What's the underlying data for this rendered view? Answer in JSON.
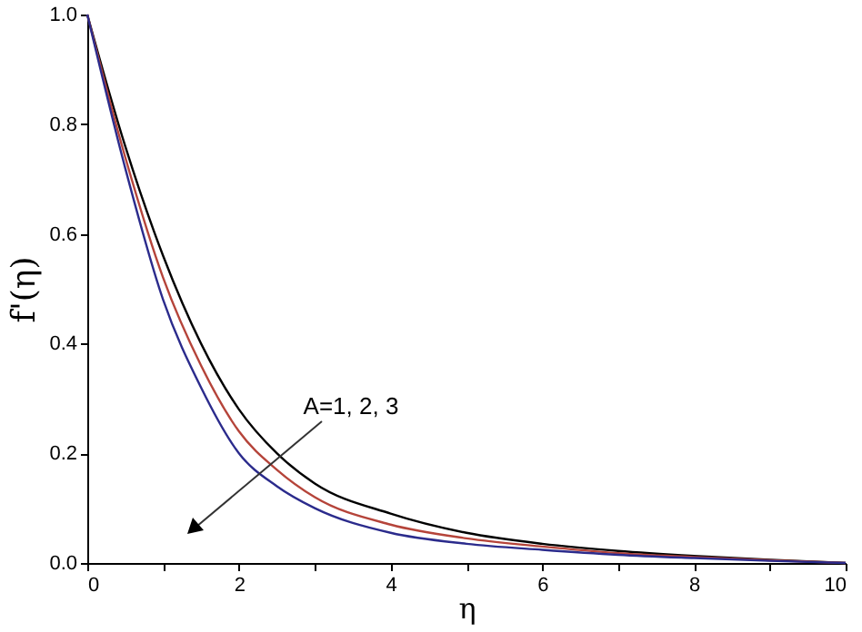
{
  "chart_data": {
    "type": "line",
    "xlabel": "η",
    "ylabel": "f'(η)",
    "x": [
      0,
      0.5,
      1,
      1.5,
      2,
      2.5,
      3,
      4,
      5,
      6,
      7,
      8,
      9,
      10
    ],
    "series": [
      {
        "color": "#000000",
        "values": [
          1,
          0.76,
          0.56,
          0.4,
          0.28,
          0.2,
          0.145,
          0.09,
          0.055,
          0.035,
          0.022,
          0.013,
          0.006,
          0
        ]
      },
      {
        "color": "#b5443a",
        "values": [
          1,
          0.74,
          0.52,
          0.36,
          0.24,
          0.17,
          0.12,
          0.07,
          0.045,
          0.03,
          0.018,
          0.011,
          0.005,
          0
        ]
      },
      {
        "color": "#2b2b8c",
        "values": [
          1,
          0.72,
          0.48,
          0.32,
          0.2,
          0.14,
          0.1,
          0.055,
          0.035,
          0.024,
          0.015,
          0.009,
          0.004,
          0
        ]
      }
    ],
    "xlim": [
      0,
      10
    ],
    "ylim": [
      0,
      1
    ],
    "xticks": [
      0,
      {
        "value": 1,
        "label": null
      },
      2,
      {
        "value": 3,
        "label": null
      },
      4,
      {
        "value": 5,
        "label": null
      },
      6,
      {
        "value": 7,
        "label": null
      },
      8,
      {
        "value": 9,
        "label": null
      },
      10
    ],
    "yticks": [
      {
        "value": 0,
        "label": "0.0"
      },
      {
        "value": 0.2,
        "label": "0.2"
      },
      {
        "value": 0.4,
        "label": "0.4"
      },
      {
        "value": 0.6,
        "label": "0.6"
      },
      {
        "value": 0.8,
        "label": "0.8"
      },
      {
        "value": 1,
        "label": "1.0"
      }
    ],
    "annotations": [
      "A=1, 2, 3"
    ],
    "grid": false,
    "marker": "none",
    "line_style": "solid"
  }
}
